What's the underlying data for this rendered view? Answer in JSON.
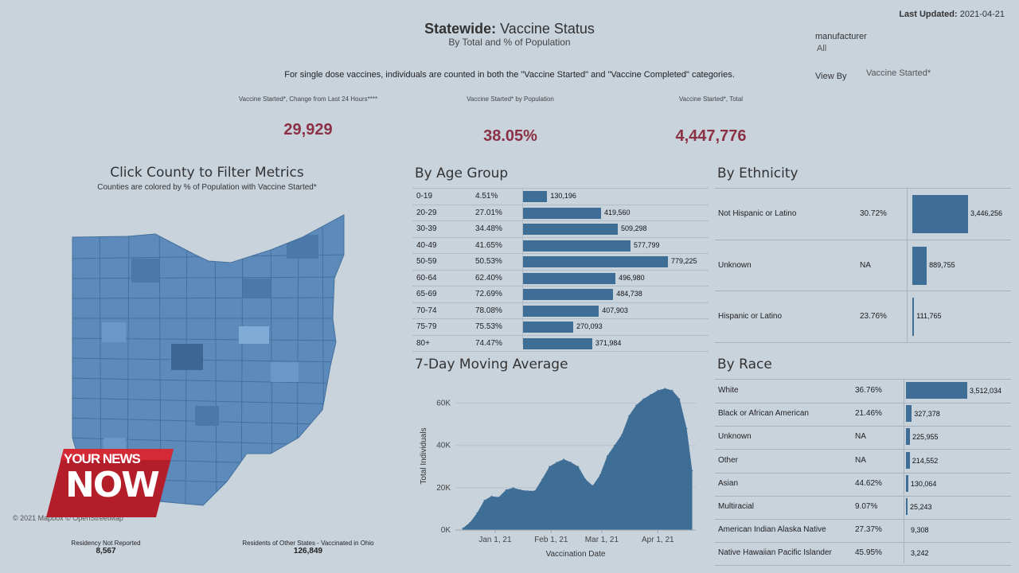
{
  "header": {
    "title_bold": "Statewide:",
    "title_rest": " Vaccine Status",
    "subtitle": "By Total and % of Population",
    "updated_label": "Last Updated:",
    "updated_value": "2021-04-21",
    "note": "For single dose vaccines, individuals are counted in both the \"Vaccine Started\" and \"Vaccine Completed\" categories."
  },
  "filters": {
    "manufacturer_label": "manufacturer",
    "manufacturer_value": "All",
    "viewby_label": "View By",
    "viewby_value": "Vaccine Started*"
  },
  "kpis": [
    {
      "label": "Vaccine Started*, Change from Last 24 Hours****",
      "value": "29,929"
    },
    {
      "label": "Vaccine Started* by Population",
      "value": "38.05%"
    },
    {
      "label": "Vaccine Started*, Total",
      "value": "4,447,776"
    }
  ],
  "map": {
    "title": "Click County to Filter Metrics",
    "subtitle": "Counties are colored by % of Population with Vaccine Started*",
    "credit": "© 2021 Mapbox © OpenStreetMap",
    "colors": {
      "base": "#5c8bbb",
      "dark": "#3c6694",
      "light": "#7fabd6"
    }
  },
  "footer": {
    "not_reported_label": "Residency Not Reported",
    "not_reported_value": "8,567",
    "other_states_label": "Residents of Other States - Vaccinated in Ohio",
    "other_states_value": "126,849"
  },
  "logo": {
    "line1": "YOUR NEWS",
    "line2": "NOW"
  },
  "age": {
    "title": "By Age Group",
    "max": 779225,
    "rows": [
      {
        "group": "0-19",
        "pct": "4.51%",
        "value": 130196,
        "label": "130,196"
      },
      {
        "group": "20-29",
        "pct": "27.01%",
        "value": 419560,
        "label": "419,560"
      },
      {
        "group": "30-39",
        "pct": "34.48%",
        "value": 509298,
        "label": "509,298"
      },
      {
        "group": "40-49",
        "pct": "41.65%",
        "value": 577799,
        "label": "577,799"
      },
      {
        "group": "50-59",
        "pct": "50.53%",
        "value": 779225,
        "label": "779,225"
      },
      {
        "group": "60-64",
        "pct": "62.40%",
        "value": 496980,
        "label": "496,980"
      },
      {
        "group": "65-69",
        "pct": "72.69%",
        "value": 484738,
        "label": "484,738"
      },
      {
        "group": "70-74",
        "pct": "78.08%",
        "value": 407903,
        "label": "407,903"
      },
      {
        "group": "75-79",
        "pct": "75.53%",
        "value": 270093,
        "label": "270,093"
      },
      {
        "group": "80+",
        "pct": "74.47%",
        "value": 371984,
        "label": "371,984"
      }
    ]
  },
  "ethnicity": {
    "title": "By Ethnicity",
    "max": 3446256,
    "rows": [
      {
        "name": "Not Hispanic or Latino",
        "pct": "30.72%",
        "value": 3446256,
        "label": "3,446,256"
      },
      {
        "name": "Unknown",
        "pct": "NA",
        "value": 889755,
        "label": "889,755"
      },
      {
        "name": "Hispanic or Latino",
        "pct": "23.76%",
        "value": 111765,
        "label": "111,765"
      }
    ]
  },
  "race": {
    "title": "By Race",
    "max": 3512034,
    "rows": [
      {
        "name": "White",
        "pct": "36.76%",
        "value": 3512034,
        "label": "3,512,034"
      },
      {
        "name": "Black or African American",
        "pct": "21.46%",
        "value": 327378,
        "label": "327,378"
      },
      {
        "name": "Unknown",
        "pct": "NA",
        "value": 225955,
        "label": "225,955"
      },
      {
        "name": "Other",
        "pct": "NA",
        "value": 214552,
        "label": "214,552"
      },
      {
        "name": "Asian",
        "pct": "44.62%",
        "value": 130064,
        "label": "130,064"
      },
      {
        "name": "Multiracial",
        "pct": "9.07%",
        "value": 25243,
        "label": "25,243"
      },
      {
        "name": "American Indian Alaska Native",
        "pct": "27.37%",
        "value": 9308,
        "label": "9,308"
      },
      {
        "name": "Native Hawaiian Pacific Islander",
        "pct": "45.95%",
        "value": 3242,
        "label": "3,242"
      }
    ]
  },
  "chart_data": {
    "type": "area",
    "title": "7-Day Moving Average",
    "xlabel": "Vaccination Date",
    "ylabel": "Total Individuals",
    "ylim": [
      0,
      70000
    ],
    "yticks": [
      0,
      20000,
      40000,
      60000
    ],
    "ytick_labels": [
      "0K",
      "20K",
      "40K",
      "60K"
    ],
    "xticks": [
      "2021-01-01",
      "2021-02-01",
      "2021-03-01",
      "2021-04-01"
    ],
    "xtick_labels": [
      "Jan 1, 21",
      "Feb 1, 21",
      "Mar 1, 21",
      "Apr 1, 21"
    ],
    "color": "#3e6d96",
    "series": [
      {
        "x": [
          "2020-12-14",
          "2020-12-18",
          "2020-12-22",
          "2020-12-26",
          "2020-12-30",
          "2021-01-03",
          "2021-01-07",
          "2021-01-11",
          "2021-01-15",
          "2021-01-19",
          "2021-01-23",
          "2021-01-27",
          "2021-01-31",
          "2021-02-04",
          "2021-02-08",
          "2021-02-12",
          "2021-02-16",
          "2021-02-20",
          "2021-02-24",
          "2021-02-28",
          "2021-03-04",
          "2021-03-08",
          "2021-03-12",
          "2021-03-16",
          "2021-03-20",
          "2021-03-24",
          "2021-03-28",
          "2021-04-01",
          "2021-04-05",
          "2021-04-09",
          "2021-04-13",
          "2021-04-17",
          "2021-04-20"
        ],
        "y": [
          800,
          3500,
          8000,
          14000,
          16000,
          15500,
          19000,
          20000,
          19000,
          18500,
          18500,
          24000,
          30000,
          32000,
          33500,
          32000,
          30000,
          24000,
          21000,
          26000,
          35000,
          40000,
          45000,
          54000,
          59000,
          62000,
          64000,
          66000,
          67000,
          66000,
          62000,
          48000,
          28000
        ]
      }
    ]
  }
}
